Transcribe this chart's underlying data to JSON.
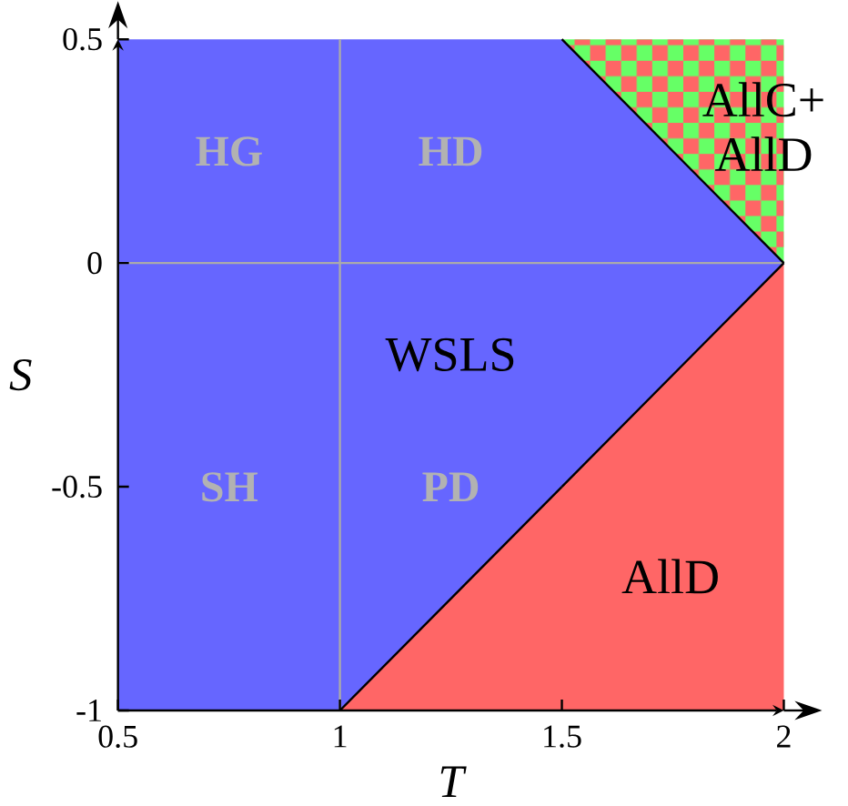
{
  "chart_data": {
    "type": "area",
    "xlabel": "T",
    "ylabel": "S",
    "series": [
      {
        "color": "#66ff66",
        "x": [
          1.5,
          2
        ],
        "values": [
          0.5,
          0.5
        ]
      },
      {
        "color": "#ff6666",
        "x": [
          1,
          2
        ],
        "values": [
          -1,
          -1
        ]
      },
      {
        "color": "#6666ff",
        "x": [
          0.5,
          1,
          1.5,
          2
        ],
        "values": [
          0.5,
          0.5,
          0.5,
          0
        ]
      },
      {
        "color": "#6666ff",
        "x": [
          0.5,
          1,
          1.5,
          2
        ],
        "values": [
          -1,
          -1,
          -0.5,
          0
        ]
      }
    ],
    "xlim": [
      0.5,
      2
    ],
    "ylim": [
      -1,
      0.5
    ],
    "xticks": [
      0.5,
      1,
      1.5,
      2
    ],
    "yticks": [
      -1,
      -0.5,
      0,
      0.5
    ],
    "ref_lines": [
      {
        "axis": "x",
        "value": 1,
        "color": "#aaaaaa"
      },
      {
        "axis": "y",
        "value": 0,
        "color": "#aaaaaa"
      }
    ],
    "annotations": [
      "HG",
      "HD",
      "SH",
      "PD",
      "WSLS",
      "AllD",
      "AllC+ AllD"
    ]
  }
}
